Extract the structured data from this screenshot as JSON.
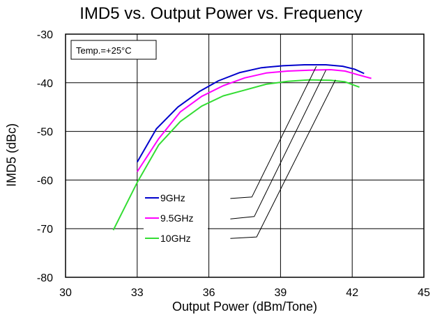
{
  "chart_data": {
    "type": "line",
    "title": "IMD5 vs. Output Power vs. Frequency",
    "xlabel": "Output Power (dBm/Tone)",
    "ylabel": "IMD5 (dBc)",
    "xlim": [
      30,
      45
    ],
    "ylim": [
      -80,
      -30
    ],
    "xticks": [
      30,
      33,
      36,
      39,
      42,
      45
    ],
    "yticks": [
      -30,
      -40,
      -50,
      -60,
      -70,
      -80
    ],
    "x_tick_labels": [
      "30",
      "33",
      "36",
      "39",
      "42",
      "45"
    ],
    "y_tick_labels": [
      "-30",
      "-40",
      "-50",
      "-60",
      "-70",
      "-80"
    ],
    "grid": true,
    "annotation": "Temp.=+25°C",
    "legend_position": "lower-left (inside plot)",
    "series": [
      {
        "name": "9GHz",
        "color": "#0000cc",
        "x": [
          33.0,
          33.8,
          34.7,
          35.6,
          36.4,
          37.3,
          38.2,
          39.1,
          40.0,
          40.9,
          41.6,
          42.1,
          42.5
        ],
        "y": [
          -56.3,
          -49.5,
          -45.0,
          -41.8,
          -39.6,
          -37.9,
          -36.9,
          -36.5,
          -36.3,
          -36.3,
          -36.6,
          -37.2,
          -38.1
        ]
      },
      {
        "name": "9.5GHz",
        "color": "#ff00ff",
        "x": [
          33.0,
          33.9,
          34.8,
          35.7,
          36.6,
          37.5,
          38.4,
          39.3,
          40.2,
          41.1,
          41.7,
          42.2,
          42.8
        ],
        "y": [
          -58.3,
          -51.5,
          -46.0,
          -42.8,
          -40.6,
          -39.0,
          -38.0,
          -37.6,
          -37.4,
          -37.3,
          -37.6,
          -38.3,
          -39.1
        ]
      },
      {
        "name": "10GHz",
        "color": "#33dd33",
        "x": [
          32.0,
          33.0,
          33.9,
          34.8,
          35.7,
          36.6,
          37.5,
          38.4,
          39.3,
          40.2,
          41.1,
          41.7,
          42.3
        ],
        "y": [
          -70.3,
          -60.5,
          -52.8,
          -48.0,
          -44.8,
          -42.7,
          -41.5,
          -40.3,
          -39.7,
          -39.4,
          -39.5,
          -39.8,
          -40.9
        ]
      }
    ],
    "legend_pointers": [
      {
        "series": "9GHz",
        "from": [
          36.9,
          -63.8
        ],
        "elbow": [
          37.8,
          -63.5
        ],
        "to": [
          40.5,
          -36.6
        ]
      },
      {
        "series": "9.5GHz",
        "from": [
          36.9,
          -68.0
        ],
        "elbow": [
          37.9,
          -67.5
        ],
        "to": [
          40.9,
          -37.4
        ]
      },
      {
        "series": "10GHz",
        "from": [
          36.9,
          -72.0
        ],
        "elbow": [
          38.0,
          -71.7
        ],
        "to": [
          41.3,
          -39.4
        ]
      }
    ]
  }
}
